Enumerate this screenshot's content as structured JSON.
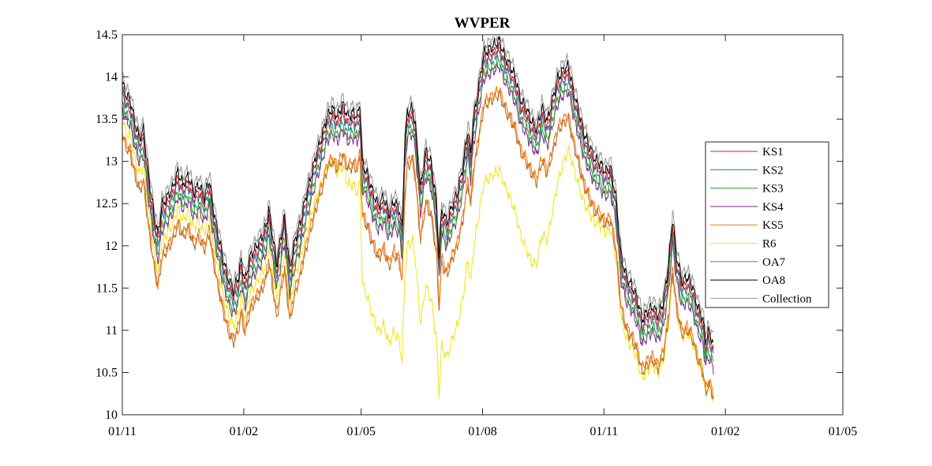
{
  "chart_data": {
    "type": "line",
    "title": "WVPER",
    "xlabel": "",
    "ylabel": "",
    "x_tick_labels": [
      "01/11",
      "01/02",
      "01/05",
      "01/08",
      "01/11",
      "01/02",
      "01/05"
    ],
    "x_tick_days": [
      0,
      92,
      181,
      273,
      365,
      457,
      546
    ],
    "xlim_days": [
      0,
      546
    ],
    "data_end_day": 448,
    "ylim": [
      10,
      14.5
    ],
    "y_ticks": [
      10,
      10.5,
      11,
      11.5,
      12,
      12.5,
      13,
      13.5,
      14,
      14.5
    ],
    "grid": false,
    "legend_position": "right",
    "base_curve": [
      [
        0,
        13.85
      ],
      [
        3,
        13.7
      ],
      [
        6,
        13.65
      ],
      [
        10,
        13.35
      ],
      [
        13,
        13.2
      ],
      [
        16,
        13.3
      ],
      [
        20,
        12.75
      ],
      [
        24,
        12.3
      ],
      [
        27,
        12.05
      ],
      [
        30,
        12.4
      ],
      [
        34,
        12.5
      ],
      [
        38,
        12.6
      ],
      [
        42,
        12.8
      ],
      [
        46,
        12.65
      ],
      [
        50,
        12.75
      ],
      [
        54,
        12.55
      ],
      [
        58,
        12.65
      ],
      [
        62,
        12.5
      ],
      [
        66,
        12.7
      ],
      [
        68,
        12.45
      ],
      [
        72,
        12.1
      ],
      [
        76,
        11.8
      ],
      [
        80,
        11.55
      ],
      [
        84,
        11.4
      ],
      [
        88,
        11.55
      ],
      [
        90,
        11.75
      ],
      [
        93,
        11.5
      ],
      [
        97,
        11.8
      ],
      [
        101,
        11.9
      ],
      [
        105,
        12.0
      ],
      [
        109,
        12.15
      ],
      [
        111,
        12.35
      ],
      [
        113,
        12.15
      ],
      [
        117,
        11.7
      ],
      [
        121,
        12.1
      ],
      [
        123,
        12.25
      ],
      [
        127,
        11.65
      ],
      [
        131,
        12.0
      ],
      [
        135,
        12.2
      ],
      [
        139,
        12.5
      ],
      [
        143,
        12.75
      ],
      [
        147,
        13.0
      ],
      [
        151,
        13.2
      ],
      [
        155,
        13.45
      ],
      [
        159,
        13.55
      ],
      [
        163,
        13.45
      ],
      [
        167,
        13.6
      ],
      [
        171,
        13.45
      ],
      [
        175,
        13.5
      ],
      [
        178,
        13.45
      ],
      [
        180,
        13.6
      ],
      [
        182,
        12.9
      ],
      [
        186,
        12.75
      ],
      [
        190,
        12.55
      ],
      [
        194,
        12.4
      ],
      [
        198,
        12.5
      ],
      [
        202,
        12.3
      ],
      [
        206,
        12.45
      ],
      [
        210,
        12.35
      ],
      [
        212,
        12.1
      ],
      [
        214,
        13.1
      ],
      [
        216,
        13.5
      ],
      [
        220,
        13.55
      ],
      [
        222,
        13.35
      ],
      [
        226,
        12.6
      ],
      [
        230,
        13.05
      ],
      [
        234,
        12.9
      ],
      [
        238,
        12.45
      ],
      [
        240,
        11.8
      ],
      [
        242,
        12.35
      ],
      [
        246,
        12.2
      ],
      [
        250,
        12.4
      ],
      [
        254,
        12.55
      ],
      [
        258,
        12.85
      ],
      [
        262,
        13.3
      ],
      [
        264,
        13.0
      ],
      [
        266,
        13.4
      ],
      [
        270,
        13.8
      ],
      [
        274,
        14.2
      ],
      [
        278,
        14.25
      ],
      [
        282,
        14.3
      ],
      [
        286,
        14.35
      ],
      [
        290,
        14.15
      ],
      [
        294,
        14.05
      ],
      [
        298,
        13.9
      ],
      [
        302,
        13.65
      ],
      [
        306,
        13.55
      ],
      [
        310,
        13.4
      ],
      [
        314,
        13.3
      ],
      [
        318,
        13.55
      ],
      [
        322,
        13.4
      ],
      [
        326,
        13.65
      ],
      [
        330,
        13.9
      ],
      [
        334,
        14.0
      ],
      [
        338,
        14.05
      ],
      [
        342,
        13.75
      ],
      [
        346,
        13.5
      ],
      [
        350,
        13.25
      ],
      [
        354,
        13.1
      ],
      [
        358,
        12.95
      ],
      [
        362,
        12.9
      ],
      [
        366,
        12.8
      ],
      [
        370,
        12.85
      ],
      [
        374,
        12.5
      ],
      [
        378,
        11.8
      ],
      [
        382,
        11.55
      ],
      [
        386,
        11.45
      ],
      [
        390,
        11.3
      ],
      [
        394,
        11.05
      ],
      [
        398,
        11.15
      ],
      [
        402,
        11.2
      ],
      [
        406,
        11.1
      ],
      [
        410,
        11.25
      ],
      [
        414,
        11.7
      ],
      [
        417,
        12.25
      ],
      [
        420,
        11.8
      ],
      [
        424,
        11.5
      ],
      [
        428,
        11.55
      ],
      [
        432,
        11.45
      ],
      [
        436,
        11.2
      ],
      [
        440,
        11.05
      ],
      [
        442,
        10.8
      ],
      [
        444,
        10.9
      ],
      [
        446,
        10.85
      ],
      [
        448,
        10.75
      ]
    ],
    "series": [
      {
        "name": "KS1",
        "color": "#d62020",
        "offset": 0.0,
        "r6": false
      },
      {
        "name": "KS2",
        "color": "#1f6fa8",
        "offset": -0.05,
        "r6": false
      },
      {
        "name": "KS3",
        "color": "#2ca02c",
        "offset": -0.15,
        "r6": false
      },
      {
        "name": "KS4",
        "color": "#7a2a8a",
        "offset": -0.22,
        "r6": false
      },
      {
        "name": "KS5",
        "color": "#f07810",
        "offset": -0.5,
        "r6": false
      },
      {
        "name": "R6",
        "color": "#f0e610",
        "offset": -0.35,
        "r6": true
      },
      {
        "name": "OA7",
        "color": "#b5651d",
        "offset": -0.55,
        "r6": false
      },
      {
        "name": "OA8",
        "color": "#000000",
        "offset": 0.08,
        "r6": false
      },
      {
        "name": "Collection",
        "color": "#999999",
        "offset": 0.17,
        "r6": false
      }
    ],
    "r6_adjust": [
      [
        0,
        0
      ],
      [
        140,
        0
      ],
      [
        160,
        -0.2
      ],
      [
        180,
        -0.5
      ],
      [
        182,
        -1.0
      ],
      [
        200,
        -1.1
      ],
      [
        240,
        -1.2
      ],
      [
        262,
        -1.1
      ],
      [
        274,
        -1.1
      ],
      [
        290,
        -1.1
      ],
      [
        310,
        -1.25
      ],
      [
        330,
        -0.8
      ],
      [
        340,
        -0.5
      ],
      [
        360,
        -0.3
      ],
      [
        380,
        -0.3
      ],
      [
        448,
        -0.2
      ]
    ]
  }
}
